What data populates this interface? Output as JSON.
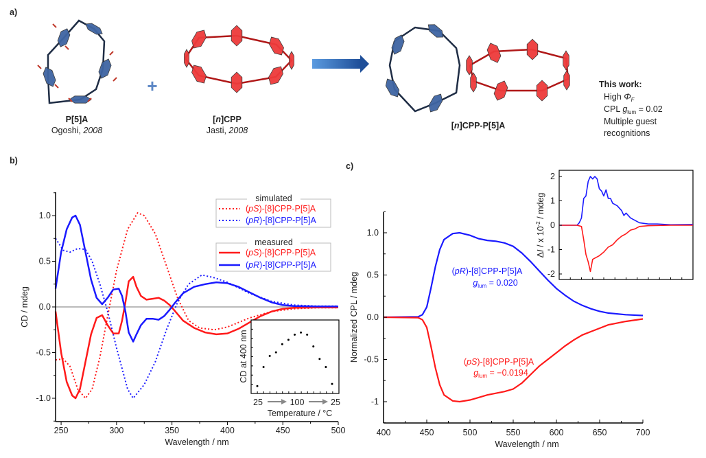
{
  "panel_a": {
    "label": "a)",
    "p5a": {
      "name": "P[5]A",
      "author": "Ogoshi, ",
      "year": "2008"
    },
    "plus": "+",
    "cpp": {
      "name_pre": "[",
      "name_n": "n",
      "name_post": "]CPP",
      "author": "Jasti, ",
      "year": "2008"
    },
    "product": {
      "pre": "[",
      "n": "n",
      "post": "]CPP-P[5]A"
    },
    "this_work": {
      "title": "This work:",
      "line1_pre": "High ",
      "line1_sym": "Φ",
      "line1_sub": "F",
      "line2_pre": "CPL ",
      "line2_g": "g",
      "line2_sub": "lum",
      "line2_post": " = 0.02",
      "line3": "Multiple guest",
      "line4": "recognitions"
    },
    "colors": {
      "p5a": "#3f65a3",
      "cpp": "#ee3b3b",
      "linker": "#1f2d45",
      "arrow": "#2e6fc0"
    }
  },
  "panel_b_label": "b)",
  "panel_c_label": "c)",
  "chart_data": [
    {
      "id": "cd",
      "type": "line",
      "xlabel": "Wavelength / nm",
      "ylabel": "CD / mdeg",
      "xlim": [
        245,
        500
      ],
      "ylim": [
        -1.25,
        1.25
      ],
      "xticks": [
        250,
        300,
        350,
        400,
        450,
        500
      ],
      "yticks": [
        1.0,
        0.5,
        0.0,
        -0.5,
        -1.0
      ],
      "ytick_labels": [
        "1.0",
        "0.5",
        "0.0",
        "-0.5",
        "-1.0"
      ],
      "legend": {
        "simulated_title": "simulated",
        "measured_title": "measured",
        "placement": "top-right"
      },
      "series": [
        {
          "name_pre": "(",
          "name_it": "pS",
          "name_post": ")-[8]CPP-P[5]A",
          "group": "simulated",
          "style": "dotted",
          "color": "#ff1a1a",
          "x": [
            245,
            252,
            258,
            265,
            272,
            278,
            285,
            292,
            300,
            310,
            319,
            325,
            335,
            345,
            355,
            365,
            375,
            388,
            400,
            420,
            440,
            460,
            480,
            500
          ],
          "y": [
            -0.58,
            -0.57,
            -0.65,
            -0.9,
            -1.0,
            -0.9,
            -0.55,
            -0.1,
            0.4,
            0.85,
            1.03,
            1.0,
            0.8,
            0.45,
            0.1,
            -0.15,
            -0.23,
            -0.25,
            -0.22,
            -0.12,
            -0.05,
            -0.02,
            -0.01,
            -0.01
          ]
        },
        {
          "name_pre": "(",
          "name_it": "pR",
          "name_post": ")-[8]CPP-P[5]A",
          "group": "simulated",
          "style": "dotted",
          "color": "#1a1aff",
          "x": [
            245,
            252,
            258,
            265,
            272,
            278,
            285,
            292,
            300,
            310,
            315,
            325,
            335,
            345,
            355,
            365,
            377,
            388,
            400,
            420,
            440,
            460,
            480,
            500
          ],
          "y": [
            0.75,
            0.62,
            0.6,
            0.64,
            0.63,
            0.5,
            0.25,
            -0.05,
            -0.45,
            -0.9,
            -1.0,
            -0.85,
            -0.6,
            -0.25,
            0.05,
            0.25,
            0.35,
            0.32,
            0.27,
            0.15,
            0.06,
            0.02,
            0.01,
            0.01
          ]
        },
        {
          "name_pre": "(",
          "name_it": "pS",
          "name_post": ")-[8]CPP-P[5]A",
          "group": "measured",
          "style": "solid",
          "color": "#ff1a1a",
          "x": [
            245,
            250,
            255,
            260,
            263,
            267,
            272,
            277,
            282,
            287,
            292,
            297,
            302,
            305,
            308,
            311,
            315,
            318,
            322,
            327,
            333,
            338,
            343,
            348,
            353,
            360,
            370,
            380,
            390,
            400,
            410,
            420,
            430,
            440,
            450,
            460,
            480,
            500
          ],
          "y": [
            -0.05,
            -0.5,
            -0.82,
            -0.97,
            -1.0,
            -0.9,
            -0.6,
            -0.3,
            -0.12,
            -0.09,
            -0.2,
            -0.29,
            -0.29,
            -0.15,
            0.05,
            0.28,
            0.33,
            0.22,
            0.12,
            0.08,
            0.09,
            0.1,
            0.07,
            0.02,
            -0.05,
            -0.15,
            -0.23,
            -0.28,
            -0.3,
            -0.29,
            -0.24,
            -0.17,
            -0.1,
            -0.05,
            -0.02,
            -0.01,
            -0.005,
            -0.005
          ]
        },
        {
          "name_pre": "(",
          "name_it": "pR",
          "name_post": ")-[8]CPP-P[5]A",
          "group": "measured",
          "style": "solid",
          "color": "#1a1aff",
          "x": [
            245,
            250,
            255,
            260,
            263,
            267,
            272,
            277,
            282,
            287,
            292,
            297,
            302,
            305,
            308,
            311,
            315,
            318,
            322,
            327,
            333,
            338,
            343,
            348,
            353,
            360,
            370,
            380,
            390,
            400,
            410,
            420,
            430,
            440,
            450,
            460,
            480,
            500
          ],
          "y": [
            0.2,
            0.6,
            0.85,
            0.98,
            1.0,
            0.9,
            0.6,
            0.3,
            0.1,
            0.03,
            0.1,
            0.19,
            0.2,
            0.12,
            -0.05,
            -0.28,
            -0.38,
            -0.3,
            -0.2,
            -0.13,
            -0.13,
            -0.14,
            -0.1,
            -0.03,
            0.05,
            0.15,
            0.22,
            0.25,
            0.27,
            0.26,
            0.22,
            0.16,
            0.1,
            0.05,
            0.02,
            0.01,
            0.005,
            0.005
          ]
        }
      ],
      "inset": {
        "type": "scatter",
        "xlabel": "Temperature / °C",
        "ylabel": "CD at 400 nm",
        "xtick_labels": [
          "25",
          "100",
          "25"
        ],
        "x": [
          25,
          37.5,
          50,
          62.5,
          75,
          87.5,
          100,
          87.5,
          75,
          62.5,
          50,
          37.5,
          25
        ],
        "y_relative": [
          0.1,
          0.36,
          0.51,
          0.56,
          0.67,
          0.73,
          0.8,
          0.83,
          0.8,
          0.64,
          0.47,
          0.36,
          0.13
        ]
      }
    },
    {
      "id": "cpl",
      "type": "line",
      "xlabel": "Wavelength / nm",
      "ylabel": "Normalized CPL / mdeg",
      "xlim": [
        400,
        700
      ],
      "ylim": [
        -1.25,
        1.25
      ],
      "xticks": [
        400,
        450,
        500,
        550,
        600,
        650,
        700
      ],
      "yticks": [
        1.0,
        0.5,
        0.0,
        -0.5,
        -1.0
      ],
      "ytick_labels": [
        "1.0",
        "0.5",
        "0.0",
        "-0.5",
        "-1"
      ],
      "series": [
        {
          "name_pre": "(",
          "name_it": "pR",
          "name_post": ")-[8]CPP-P[5]A",
          "g_label": "g",
          "g_sub": "lum",
          "g_value": " = 0.020",
          "color": "#1a1aff",
          "x": [
            400,
            440,
            445,
            450,
            455,
            460,
            465,
            470,
            480,
            488,
            500,
            510,
            520,
            530,
            540,
            550,
            560,
            570,
            580,
            590,
            600,
            610,
            620,
            630,
            640,
            650,
            660,
            680,
            700
          ],
          "y": [
            0,
            0.005,
            0.03,
            0.12,
            0.35,
            0.6,
            0.8,
            0.92,
            0.99,
            1.0,
            0.97,
            0.93,
            0.91,
            0.9,
            0.88,
            0.84,
            0.76,
            0.66,
            0.55,
            0.44,
            0.34,
            0.26,
            0.19,
            0.14,
            0.1,
            0.07,
            0.05,
            0.03,
            0.02
          ]
        },
        {
          "name_pre": "(",
          "name_it": "pS",
          "name_post": ")-[8]CPP-P[5]A",
          "g_label": "g",
          "g_sub": "lum",
          "g_value": " = −0.0194",
          "color": "#ff1a1a",
          "x": [
            400,
            440,
            445,
            450,
            455,
            460,
            465,
            470,
            480,
            488,
            500,
            510,
            520,
            530,
            540,
            550,
            560,
            570,
            580,
            590,
            600,
            610,
            620,
            630,
            640,
            650,
            660,
            680,
            700
          ],
          "y": [
            0,
            -0.005,
            -0.03,
            -0.12,
            -0.35,
            -0.6,
            -0.8,
            -0.92,
            -0.99,
            -1.0,
            -0.98,
            -0.95,
            -0.92,
            -0.9,
            -0.88,
            -0.85,
            -0.78,
            -0.68,
            -0.58,
            -0.5,
            -0.42,
            -0.34,
            -0.27,
            -0.21,
            -0.17,
            -0.13,
            -0.09,
            -0.05,
            -0.02
          ]
        }
      ],
      "inset": {
        "type": "line",
        "ylabel_pre": "Δ",
        "ylabel_it": "I",
        "ylabel_mid": " / x 10",
        "ylabel_sup": "-2",
        "ylabel_post": " / mdeg",
        "xlim": [
          400,
          700
        ],
        "ylim": [
          -2.5,
          2.25
        ],
        "yticks": [
          2,
          1,
          0,
          -1,
          -2
        ],
        "ytick_labels": [
          "2",
          "1",
          "0",
          "-1",
          "-2"
        ],
        "series": [
          {
            "name": "(pR)",
            "color": "#1a1aff",
            "x": [
              400,
              440,
              445,
              450,
              455,
              460,
              465,
              470,
              475,
              480,
              485,
              490,
              495,
              500,
              505,
              510,
              515,
              520,
              530,
              540,
              545,
              550,
              560,
              570,
              580,
              600,
              620,
              650,
              700
            ],
            "y": [
              0,
              0,
              0.1,
              0.3,
              1.1,
              1.2,
              1.8,
              2.0,
              1.9,
              2.0,
              1.9,
              1.5,
              1.4,
              1.2,
              1.45,
              1.1,
              1.1,
              0.9,
              0.8,
              0.6,
              0.4,
              0.5,
              0.3,
              0.2,
              0.1,
              0.05,
              0.05,
              0.02,
              0.03
            ]
          },
          {
            "name": "(pS)",
            "color": "#ff1a1a",
            "x": [
              400,
              440,
              450,
              455,
              460,
              465,
              470,
              475,
              480,
              490,
              500,
              510,
              520,
              530,
              540,
              550,
              560,
              570,
              580,
              600,
              650,
              700
            ],
            "y": [
              0,
              0,
              -0.05,
              -0.6,
              -1.2,
              -1.5,
              -1.9,
              -1.4,
              -1.35,
              -1.25,
              -1.1,
              -0.9,
              -0.8,
              -0.6,
              -0.45,
              -0.35,
              -0.2,
              -0.15,
              -0.05,
              -0.02,
              0,
              0
            ]
          }
        ]
      }
    }
  ]
}
